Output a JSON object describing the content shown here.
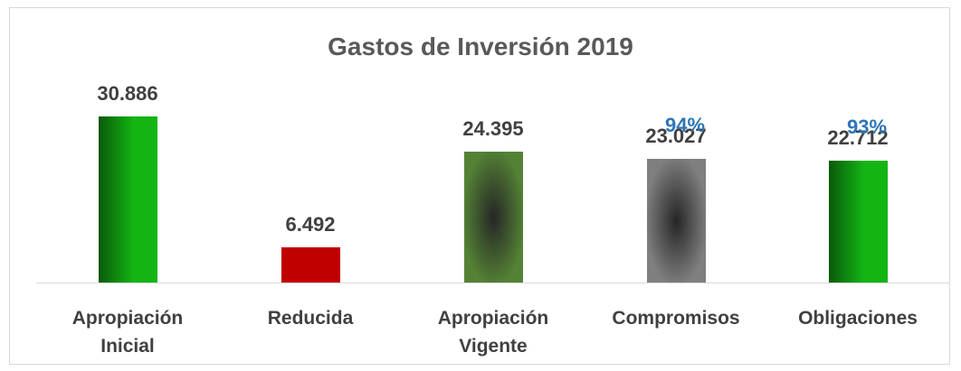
{
  "chart_data": {
    "type": "bar",
    "title": "Gastos de Inversión 2019",
    "categories": [
      "Apropiación Inicial",
      "Reducida",
      "Apropiación Vigente",
      "Compromisos",
      "Obligaciones"
    ],
    "values": [
      30886,
      6492,
      24395,
      23027,
      22712
    ],
    "value_labels": [
      "30.886",
      "6.492",
      "24.395",
      "23.027",
      "22.712"
    ],
    "colors": [
      "#13b513",
      "#c00000",
      "#548235",
      "#7f7f7f",
      "#13b513"
    ],
    "color_styles": [
      "linear",
      "solid",
      "radial",
      "radial",
      "linear"
    ],
    "pct_values": [
      null,
      null,
      null,
      94,
      93
    ],
    "pct_labels": [
      null,
      null,
      null,
      "94%",
      "93%"
    ],
    "pct_color": "#2e75b6"
  }
}
